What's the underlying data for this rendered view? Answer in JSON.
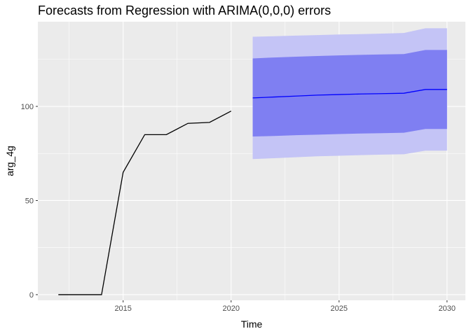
{
  "chart_data": {
    "type": "line",
    "title": "Forecasts from Regression with ARIMA(0,0,0) errors",
    "xlabel": "Time",
    "ylabel": "arg_4g",
    "xlim": [
      2011.05,
      2030.85
    ],
    "ylim": [
      -3,
      145
    ],
    "x_ticks": [
      2015,
      2020,
      2025,
      2030
    ],
    "x_tick_labels": [
      "2015",
      "2020",
      "2025",
      "2030"
    ],
    "x_minor_ticks": [
      2012.5,
      2017.5,
      2022.5,
      2027.5
    ],
    "y_ticks": [
      0,
      50,
      100
    ],
    "y_tick_labels": [
      "0",
      "50",
      "100"
    ],
    "y_minor_ticks": [
      25,
      75,
      125
    ],
    "grid": true,
    "legend": "none",
    "colors": {
      "panel": "#ebebeb",
      "grid": "#ffffff",
      "history": "#000000",
      "forecast": "#0000ff",
      "band80": "#7f7ff2",
      "band95": "#c4c4f6"
    },
    "series": [
      {
        "x": [
          2012,
          2013,
          2014,
          2015,
          2016,
          2017,
          2018,
          2019,
          2020
        ],
        "values": [
          0,
          0,
          0,
          65,
          85,
          85,
          91,
          91.5,
          97.5
        ]
      },
      {
        "x": [
          2021,
          2022,
          2023,
          2024,
          2025,
          2026,
          2027,
          2028,
          2029,
          2030
        ],
        "values": [
          104.5,
          105,
          105.5,
          106,
          106.3,
          106.6,
          106.8,
          107,
          109,
          109
        ],
        "lower80": [
          84,
          84.3,
          84.7,
          85,
          85.3,
          85.6,
          85.8,
          86,
          88,
          88
        ],
        "upper80": [
          125.5,
          126,
          126.4,
          126.8,
          127.1,
          127.4,
          127.6,
          127.8,
          130,
          130
        ],
        "lower95": [
          72,
          72.5,
          73,
          73.5,
          73.8,
          74.1,
          74.4,
          74.6,
          76.5,
          76.5
        ],
        "upper95": [
          137,
          137.3,
          137.6,
          137.9,
          138.2,
          138.4,
          138.7,
          139,
          141.5,
          141.5
        ]
      }
    ]
  }
}
